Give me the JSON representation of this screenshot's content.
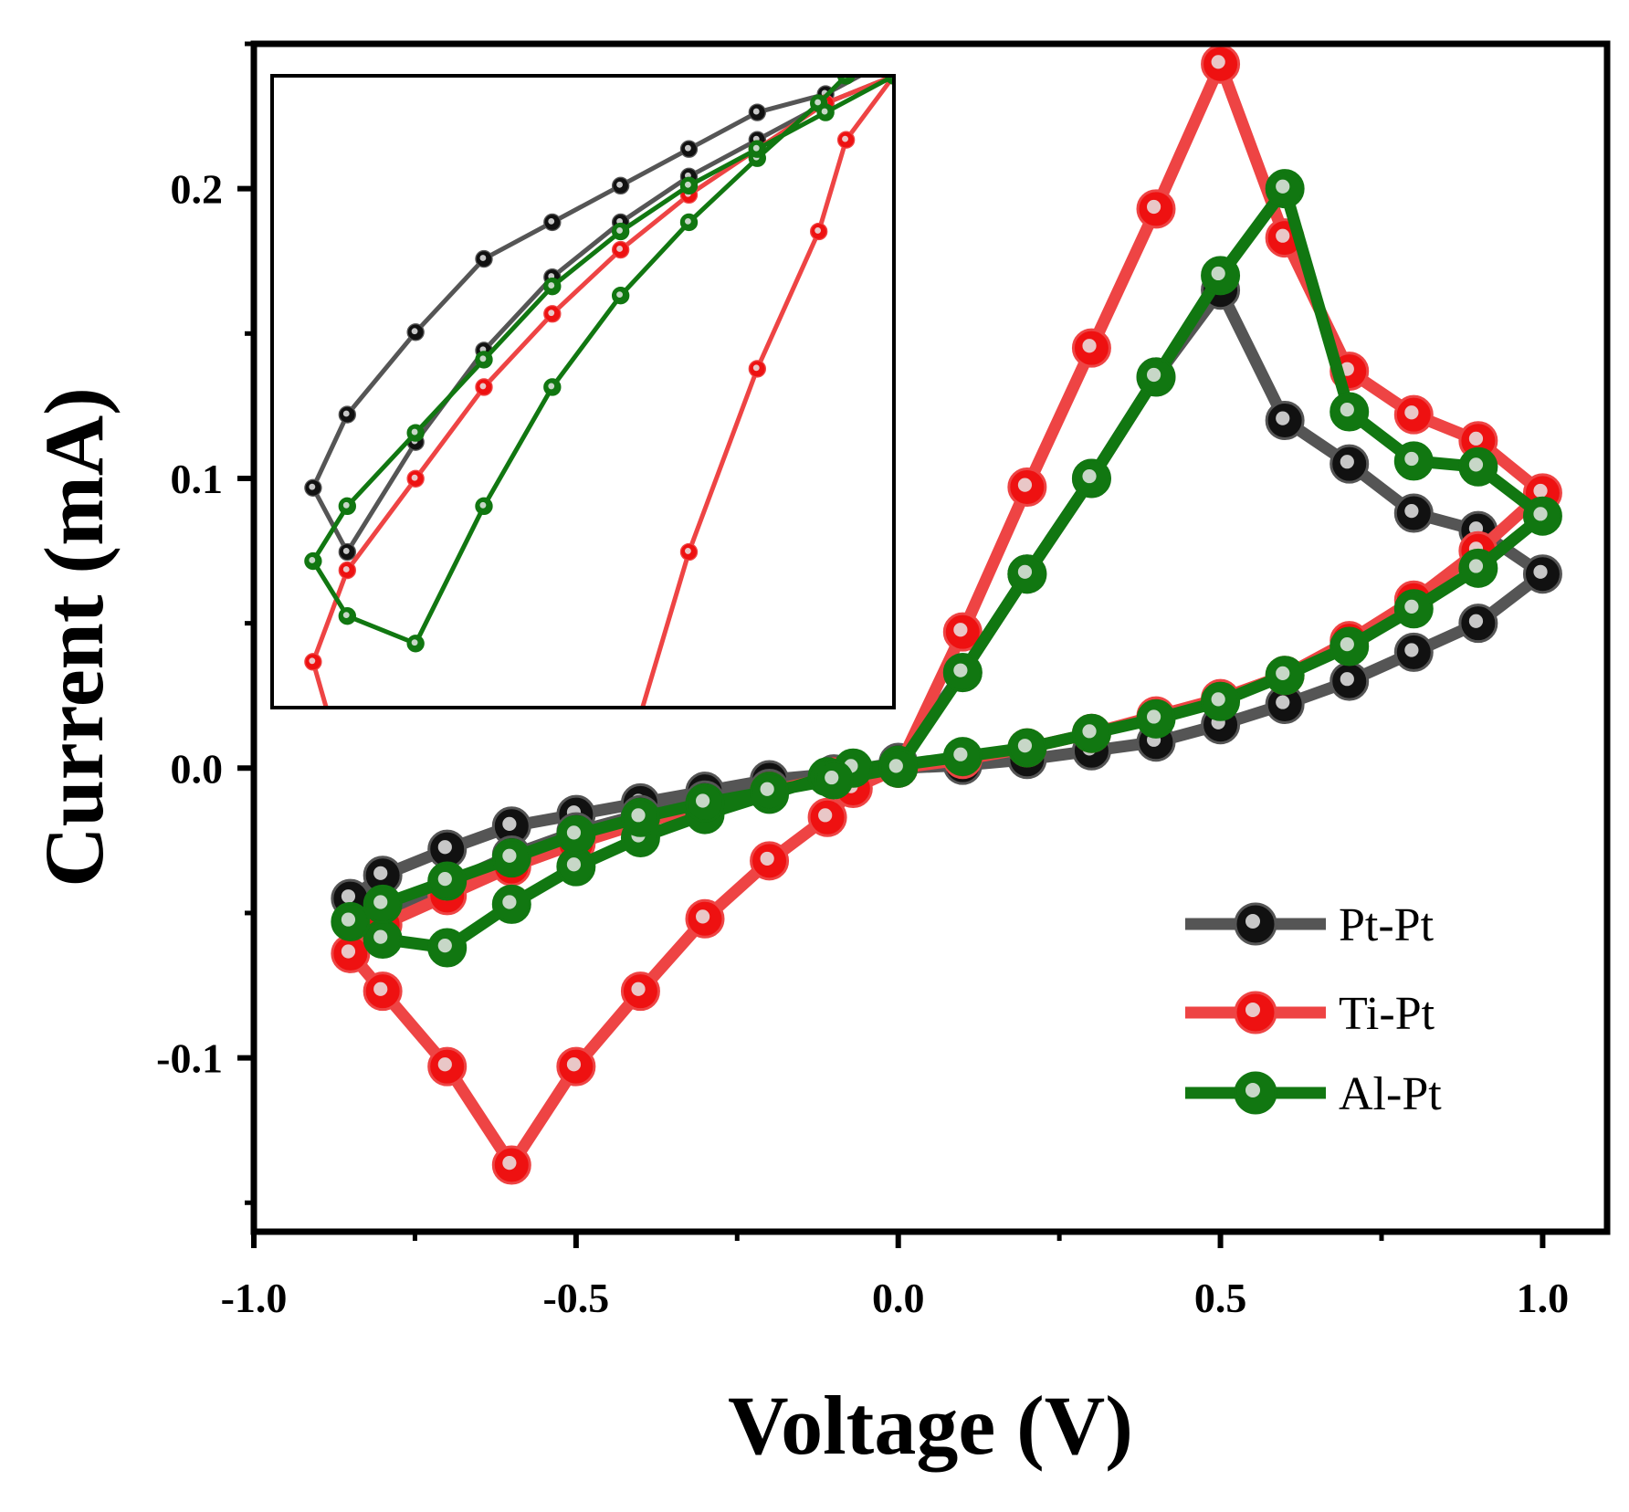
{
  "chart_data": {
    "type": "line",
    "title": "",
    "xlabel": "Voltage (V)",
    "ylabel": "Current (mA)",
    "xlim": [
      -1.0,
      1.1
    ],
    "ylim": [
      -0.16,
      0.25
    ],
    "xticks": [
      -1.0,
      -0.5,
      0.0,
      0.5,
      1.0
    ],
    "xtick_labels": [
      "-1.0",
      "-0.5",
      "0.0",
      "0.5",
      "1.0"
    ],
    "yticks": [
      -0.1,
      0.0,
      0.1,
      0.2
    ],
    "ytick_labels": [
      "-0.1",
      "0.0",
      "0.1",
      "0.2"
    ],
    "legend_position": "bottom-right",
    "series": [
      {
        "name": "Pt-Pt",
        "color": "#555555",
        "marker_color": "#111111",
        "x": [
          0.0,
          0.1,
          0.2,
          0.3,
          0.4,
          0.5,
          0.6,
          0.7,
          0.8,
          0.9,
          1.0,
          0.9,
          0.8,
          0.7,
          0.6,
          0.5,
          0.4,
          0.3,
          0.2,
          0.1,
          0.0,
          -0.1,
          -0.2,
          -0.3,
          -0.4,
          -0.5,
          -0.6,
          -0.7,
          -0.8,
          -0.85,
          -0.8,
          -0.7,
          -0.6,
          -0.5,
          -0.4,
          -0.3,
          -0.2,
          -0.1,
          0.0
        ],
        "y": [
          0.0,
          0.001,
          0.003,
          0.006,
          0.009,
          0.015,
          0.022,
          0.03,
          0.04,
          0.05,
          0.067,
          0.082,
          0.088,
          0.105,
          0.12,
          0.165,
          0.135,
          0.1,
          0.067,
          0.033,
          0.002,
          -0.002,
          -0.004,
          -0.008,
          -0.012,
          -0.016,
          -0.02,
          -0.028,
          -0.037,
          -0.045,
          -0.052,
          -0.04,
          -0.03,
          -0.022,
          -0.016,
          -0.011,
          -0.007,
          -0.003,
          0.0
        ]
      },
      {
        "name": "Ti-Pt",
        "color": "#ee4444",
        "marker_color": "#ee1111",
        "x": [
          0.0,
          0.1,
          0.2,
          0.3,
          0.4,
          0.5,
          0.6,
          0.7,
          0.8,
          0.9,
          1.0,
          0.9,
          0.8,
          0.7,
          0.6,
          0.5,
          0.4,
          0.3,
          0.2,
          0.1,
          0.0,
          -0.07,
          -0.11,
          -0.2,
          -0.3,
          -0.4,
          -0.5,
          -0.6,
          -0.7,
          -0.8,
          -0.85,
          -0.8,
          -0.7,
          -0.6,
          -0.5,
          -0.4,
          -0.3,
          -0.2,
          -0.1,
          0.0
        ],
        "y": [
          0.0,
          0.047,
          0.097,
          0.145,
          0.193,
          0.243,
          0.183,
          0.137,
          0.122,
          0.113,
          0.095,
          0.075,
          0.058,
          0.044,
          0.032,
          0.024,
          0.018,
          0.012,
          0.007,
          0.003,
          0.0,
          -0.007,
          -0.017,
          -0.032,
          -0.052,
          -0.077,
          -0.103,
          -0.137,
          -0.103,
          -0.077,
          -0.064,
          -0.054,
          -0.044,
          -0.034,
          -0.026,
          -0.019,
          -0.013,
          -0.008,
          -0.003,
          0.0
        ]
      },
      {
        "name": "Al-Pt",
        "color": "#117711",
        "marker_color": "#117711",
        "x": [
          0.0,
          0.1,
          0.2,
          0.3,
          0.4,
          0.5,
          0.6,
          0.7,
          0.8,
          0.9,
          1.0,
          0.9,
          0.8,
          0.7,
          0.6,
          0.5,
          0.4,
          0.3,
          0.2,
          0.1,
          0.0,
          -0.07,
          -0.11,
          -0.2,
          -0.3,
          -0.4,
          -0.5,
          -0.6,
          -0.7,
          -0.8,
          -0.85,
          -0.8,
          -0.7,
          -0.6,
          -0.5,
          -0.4,
          -0.3,
          -0.2,
          -0.1,
          0.0
        ],
        "y": [
          0.0,
          0.033,
          0.067,
          0.1,
          0.135,
          0.17,
          0.2,
          0.123,
          0.106,
          0.104,
          0.087,
          0.069,
          0.055,
          0.042,
          0.032,
          0.023,
          0.017,
          0.012,
          0.007,
          0.004,
          0.001,
          0.0,
          -0.003,
          -0.009,
          -0.016,
          -0.024,
          -0.034,
          -0.047,
          -0.062,
          -0.059,
          -0.053,
          -0.047,
          -0.039,
          -0.031,
          -0.023,
          -0.017,
          -0.012,
          -0.008,
          -0.004,
          0.0
        ]
      }
    ]
  }
}
